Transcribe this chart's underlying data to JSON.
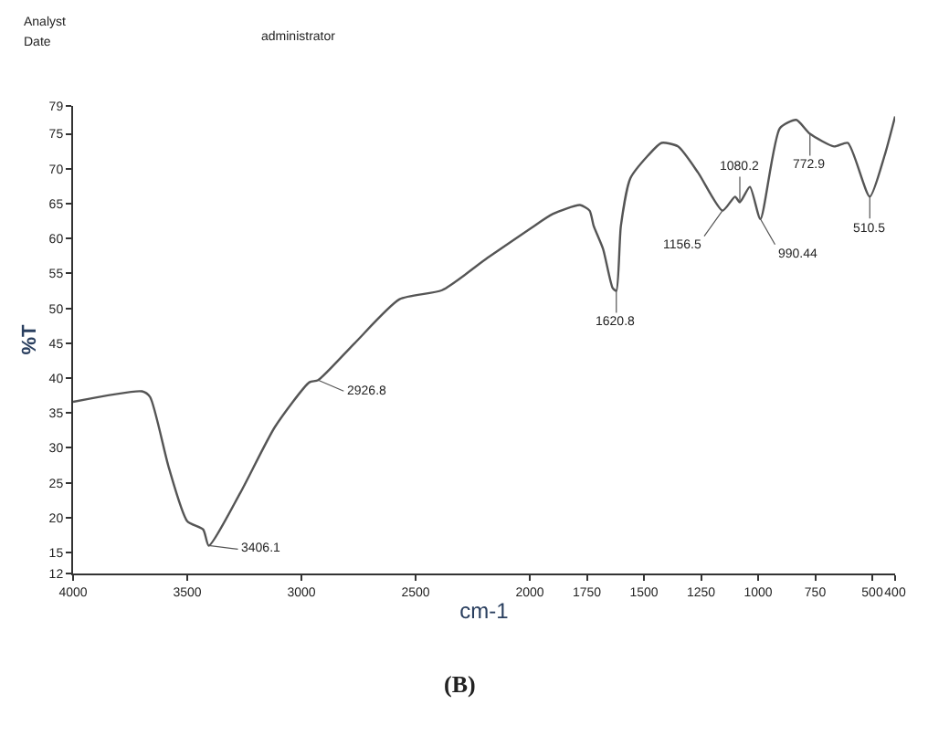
{
  "chart_data": {
    "type": "line",
    "xlabel": "cm-1",
    "ylabel": "%T",
    "color": "#555555",
    "marker": "none",
    "line_style": "solid",
    "x": [
      4000,
      3698,
      3663,
      3581,
      3500,
      3430,
      3406,
      3267,
      3116,
      2965,
      2927,
      2767,
      2570,
      2384,
      2186,
      1994,
      1900,
      1780,
      1738,
      1720,
      1679,
      1637,
      1621,
      1601,
      1560,
      1482,
      1423,
      1351,
      1262,
      1156,
      1101,
      1080,
      1036,
      990,
      905,
      833,
      773,
      667,
      607,
      511,
      446,
      400
    ],
    "values": [
      36.6,
      38.1,
      37.3,
      27.2,
      19.5,
      18.3,
      16,
      23.6,
      33,
      39.4,
      39.7,
      45,
      51.3,
      52.6,
      57.2,
      61.5,
      63.5,
      64.8,
      64,
      61.8,
      58.5,
      52.9,
      52.5,
      61.8,
      68.6,
      71.9,
      73.7,
      73.2,
      69.4,
      64,
      66,
      65.2,
      67.4,
      62.8,
      75.8,
      77,
      75,
      73.2,
      73.7,
      66,
      71.9,
      77.5
    ],
    "xlim": [
      4000,
      400
    ],
    "xticks": [
      4000,
      3500,
      3000,
      2500,
      2000,
      1750,
      1500,
      1250,
      1000,
      750,
      500,
      400
    ],
    "ylim": [
      12,
      79
    ],
    "yticks": [
      12,
      15,
      20,
      25,
      30,
      35,
      40,
      45,
      50,
      55,
      60,
      65,
      70,
      75,
      79
    ],
    "annotations": [
      {
        "text": "3406.1",
        "x": 3406,
        "y": 16
      },
      {
        "text": "2926.8",
        "x": 2927,
        "y": 39.7
      },
      {
        "text": "1620.8",
        "x": 1621,
        "y": 52.5
      },
      {
        "text": "1156.5",
        "x": 1156,
        "y": 64
      },
      {
        "text": "1080.2",
        "x": 1080,
        "y": 65.2
      },
      {
        "text": "990.44",
        "x": 990,
        "y": 62.8
      },
      {
        "text": "772.9",
        "x": 773,
        "y": 75
      },
      {
        "text": "510.5",
        "x": 511,
        "y": 66
      },
      "Analyst",
      "Date",
      "administrator",
      "(B)"
    ]
  }
}
